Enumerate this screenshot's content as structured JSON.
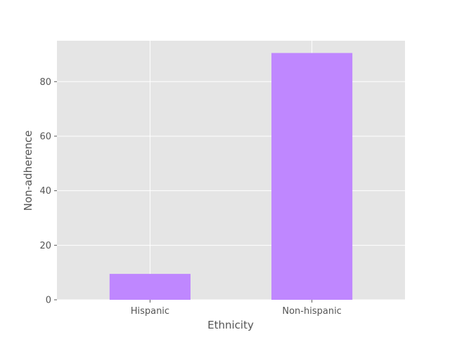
{
  "chart_data": {
    "type": "bar",
    "title": "",
    "xlabel": "Ethnicity",
    "ylabel": "Non-adherence",
    "categories": [
      "Hispanic",
      "Non-hispanic"
    ],
    "values": [
      9.5,
      90.5
    ],
    "ylim": [
      0,
      95
    ],
    "yticks": [
      "0",
      "20",
      "40",
      "60",
      "80"
    ],
    "grid": true,
    "legend": "none",
    "colors": {
      "bar": "#bf87ff",
      "plot_background": "#e5e5e5",
      "grid": "#ffffff",
      "text": "#555555"
    }
  }
}
